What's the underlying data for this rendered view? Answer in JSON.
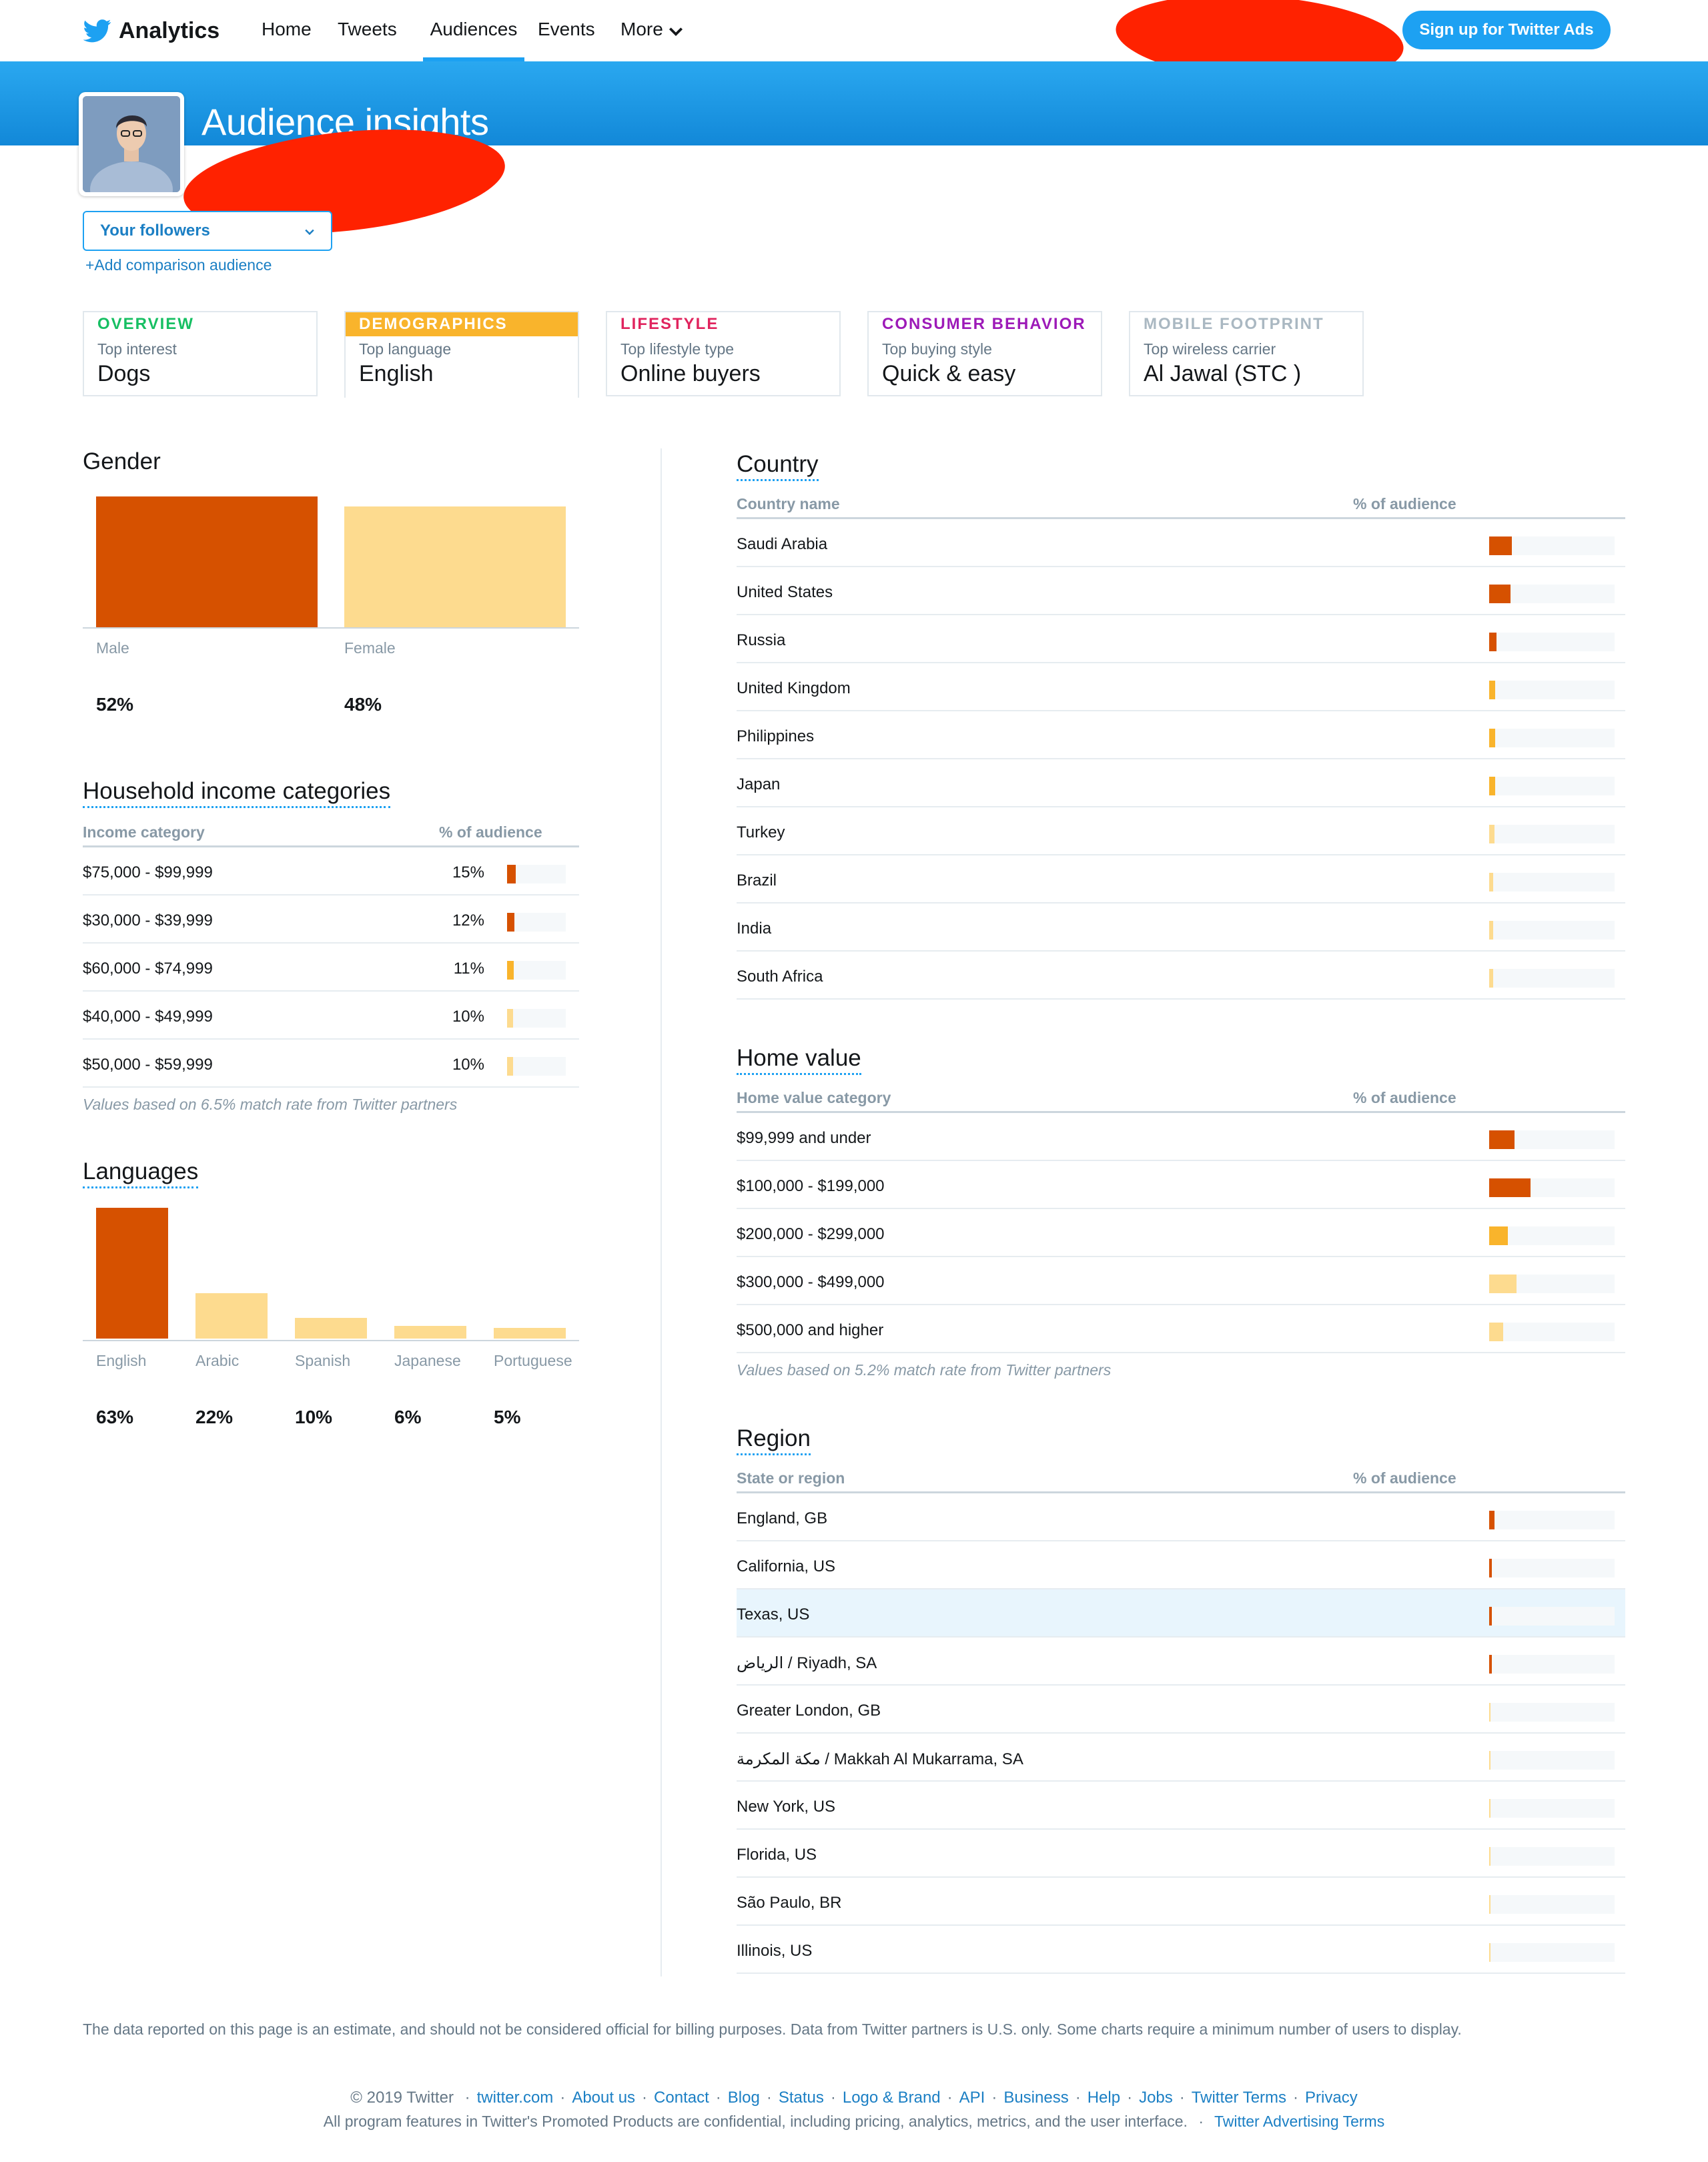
{
  "nav": {
    "brand": "Analytics",
    "items": [
      "Home",
      "Tweets",
      "Audiences",
      "Events",
      "More"
    ],
    "signup": "Sign up for Twitter Ads"
  },
  "header": {
    "title": "Audience insights",
    "audience_select": "Your followers",
    "add_comparison": "+Add comparison audience"
  },
  "tabs": [
    {
      "head": "OVERVIEW",
      "sub": "Top interest",
      "value": "Dogs",
      "color": "#17bf63"
    },
    {
      "head": "DEMOGRAPHICS",
      "sub": "Top language",
      "value": "English",
      "color": "#ffffff",
      "bg": "#f9b42c"
    },
    {
      "head": "LIFESTYLE",
      "sub": "Top lifestyle type",
      "value": "Online buyers",
      "color": "#e0245e"
    },
    {
      "head": "CONSUMER BEHAVIOR",
      "sub": "Top buying style",
      "value": "Quick & easy",
      "color": "#9d1ab8"
    },
    {
      "head": "MOBILE FOOTPRINT",
      "sub": "Top wireless carrier",
      "value": "Al Jawal (STC )",
      "color": "#aab8c2"
    }
  ],
  "gender": {
    "title": "Gender",
    "items": [
      {
        "label": "Male",
        "pct": "52%",
        "value": 52,
        "color": "#d65100"
      },
      {
        "label": "Female",
        "pct": "48%",
        "value": 48,
        "color": "#fddb8f"
      }
    ]
  },
  "income": {
    "title": "Household income categories",
    "col1": "Income category",
    "col2": "% of audience",
    "rows": [
      {
        "name": "$75,000 - $99,999",
        "pct": "15%",
        "value": 15
      },
      {
        "name": "$30,000 - $39,999",
        "pct": "12%",
        "value": 12
      },
      {
        "name": "$60,000 - $74,999",
        "pct": "11%",
        "value": 11
      },
      {
        "name": "$40,000 - $49,999",
        "pct": "10%",
        "value": 10
      },
      {
        "name": "$50,000 - $59,999",
        "pct": "10%",
        "value": 10
      }
    ],
    "note": "Values based on 6.5% match rate from Twitter partners"
  },
  "languages": {
    "title": "Languages",
    "items": [
      {
        "label": "English",
        "pct": "63%",
        "value": 63
      },
      {
        "label": "Arabic",
        "pct": "22%",
        "value": 22
      },
      {
        "label": "Spanish",
        "pct": "10%",
        "value": 10
      },
      {
        "label": "Japanese",
        "pct": "6%",
        "value": 6
      },
      {
        "label": "Portuguese",
        "pct": "5%",
        "value": 5
      }
    ]
  },
  "country": {
    "title": "Country",
    "col1": "Country name",
    "col2": "% of audience",
    "rows": [
      {
        "name": "Saudi Arabia",
        "pct": "18%",
        "value": 18
      },
      {
        "name": "United States",
        "pct": "17%",
        "value": 17
      },
      {
        "name": "Russia",
        "pct": "6%",
        "value": 6
      },
      {
        "name": "United Kingdom",
        "pct": "5%",
        "value": 5
      },
      {
        "name": "Philippines",
        "pct": "5%",
        "value": 5
      },
      {
        "name": "Japan",
        "pct": "5%",
        "value": 5
      },
      {
        "name": "Turkey",
        "pct": "4%",
        "value": 4
      },
      {
        "name": "Brazil",
        "pct": "3%",
        "value": 3
      },
      {
        "name": "India",
        "pct": "3%",
        "value": 3
      },
      {
        "name": "South Africa",
        "pct": "3%",
        "value": 3
      }
    ]
  },
  "home_value": {
    "title": "Home value",
    "col1": "Home value category",
    "col2": "% of audience",
    "rows": [
      {
        "name": "$99,999 and under",
        "pct": "20%",
        "value": 20
      },
      {
        "name": "$100,000 - $199,000",
        "pct": "33%",
        "value": 33
      },
      {
        "name": "$200,000 - $299,000",
        "pct": "15%",
        "value": 15
      },
      {
        "name": "$300,000 - $499,000",
        "pct": "22%",
        "value": 22
      },
      {
        "name": "$500,000 and higher",
        "pct": "11%",
        "value": 11
      }
    ],
    "note": "Values based on 5.2% match rate from Twitter partners"
  },
  "region": {
    "title": "Region",
    "col1": "State or region",
    "col2": "% of audience",
    "rows": [
      {
        "name": "England, GB",
        "pct": "4%",
        "value": 4
      },
      {
        "name": "California, US",
        "pct": "2%",
        "value": 2
      },
      {
        "name": "Texas, US",
        "pct": "2%",
        "value": 2,
        "highlight": true
      },
      {
        "name": "الرياض / Riyadh, SA",
        "pct": "2%",
        "value": 2
      },
      {
        "name": "Greater London, GB",
        "pct": "1%",
        "value": 1
      },
      {
        "name": "مكة المكرمة / Makkah Al Mukarrama, SA",
        "pct": "1%",
        "value": 1
      },
      {
        "name": "New York, US",
        "pct": "1%",
        "value": 1
      },
      {
        "name": "Florida, US",
        "pct": "1%",
        "value": 1
      },
      {
        "name": "São Paulo, BR",
        "pct": "< 1%",
        "value": 0.3
      },
      {
        "name": "Illinois, US",
        "pct": "< 1%",
        "value": 0.3
      }
    ]
  },
  "footer": {
    "note": "The data reported on this page is an estimate, and should not be considered official for billing purposes. Data from Twitter partners is U.S. only. Some charts require a minimum number of users to display.",
    "copyright": "© 2019 Twitter",
    "links": [
      "twitter.com",
      "About us",
      "Contact",
      "Blog",
      "Status",
      "Logo & Brand",
      "API",
      "Business",
      "Help",
      "Jobs",
      "Twitter Terms",
      "Privacy"
    ],
    "confidential": "All program features in Twitter's Promoted Products are confidential, including pricing, analytics, metrics, and the user interface.",
    "ad_terms": "Twitter Advertising Terms"
  },
  "colors": {
    "dark": "#d65100",
    "mid": "#f9b42c",
    "light": "#fddb8f",
    "accent": "#1da1f2"
  },
  "icons": [
    "twitter-bird-icon",
    "chevron-down-icon"
  ]
}
